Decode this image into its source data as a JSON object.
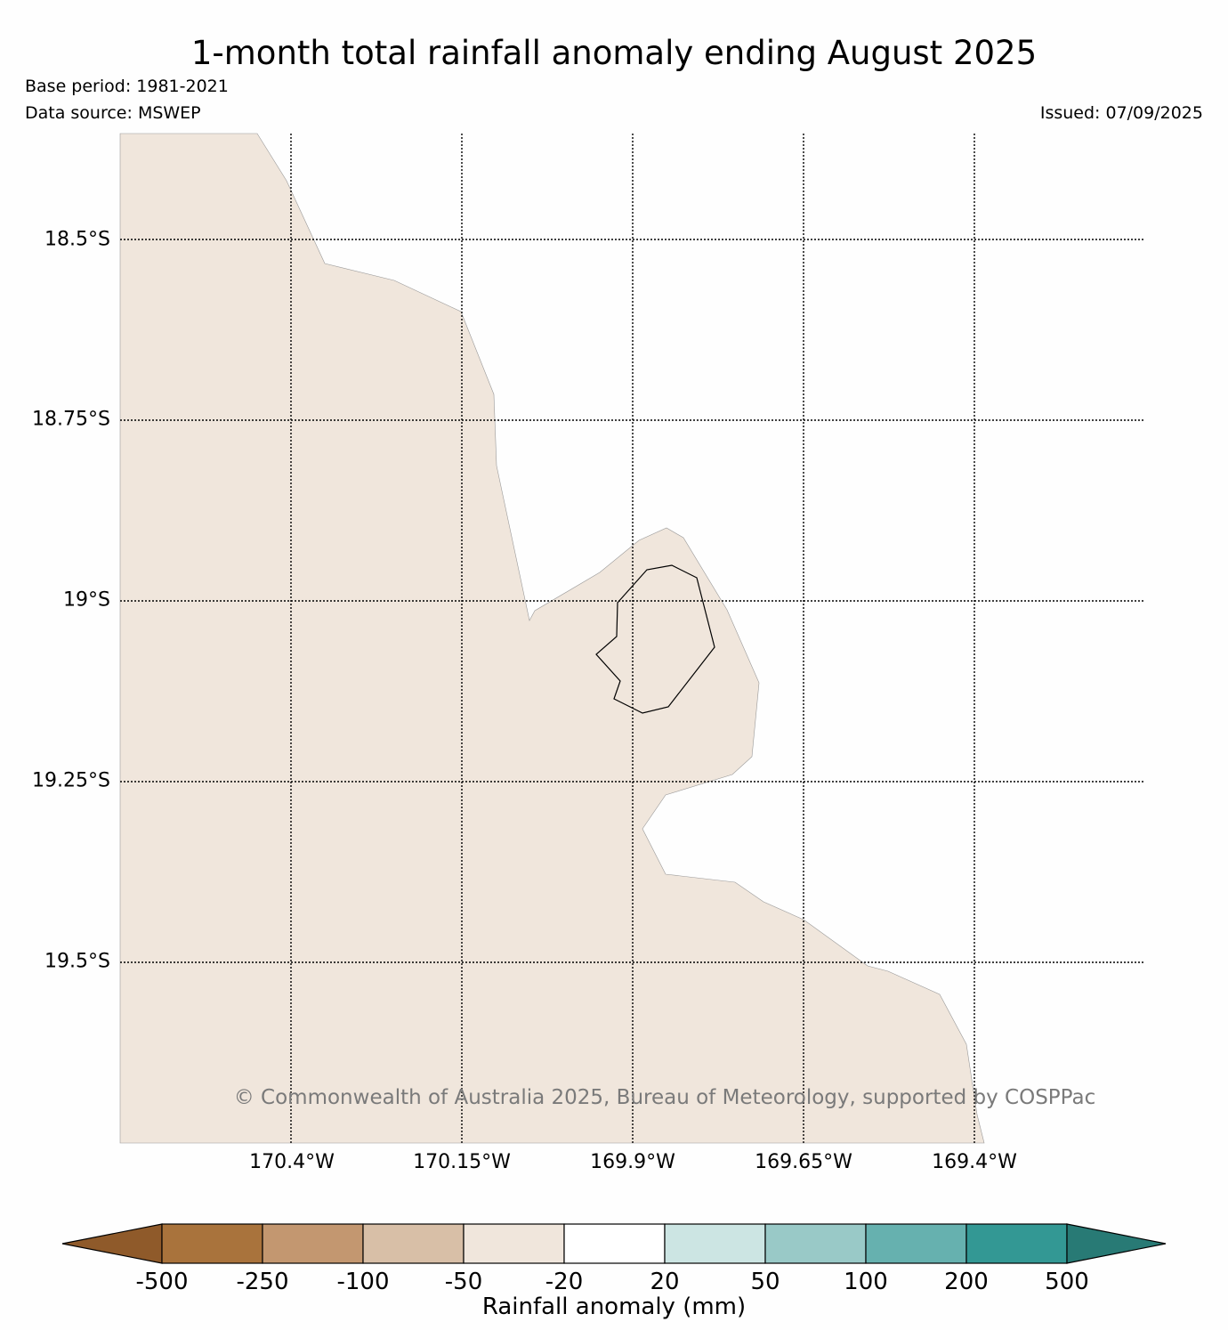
{
  "title": "1-month total rainfall anomaly ending August 2025",
  "base_period": "Base period: 1981-2021",
  "data_source": "Data source: MSWEP",
  "issued": "Issued: 07/09/2025",
  "copyright": "© Commonwealth of Australia 2025, Bureau of Meteorology, supported by COSPPac",
  "map": {
    "lat_ticks": [
      "18.5°S",
      "18.75°S",
      "19°S",
      "19.25°S",
      "19.5°S"
    ],
    "lon_ticks": [
      "170.4°W",
      "170.15°W",
      "169.9°W",
      "169.65°W",
      "169.4°W"
    ],
    "land_color": "#f0e6dc",
    "land_fill_class": "-50 to -20"
  },
  "colorbar": {
    "label": "Rainfall anomaly (mm)",
    "ticks": [
      "-500",
      "-250",
      "-100",
      "-50",
      "-20",
      "20",
      "50",
      "100",
      "200",
      "500"
    ],
    "under_color": "#8f5a2a",
    "over_color": "#287a75",
    "colors": [
      "#a9733c",
      "#c39770",
      "#d8bfa7",
      "#f0e6dc",
      "#ffffff",
      "#cce5e3",
      "#99c9c7",
      "#66b1af",
      "#339894"
    ]
  }
}
